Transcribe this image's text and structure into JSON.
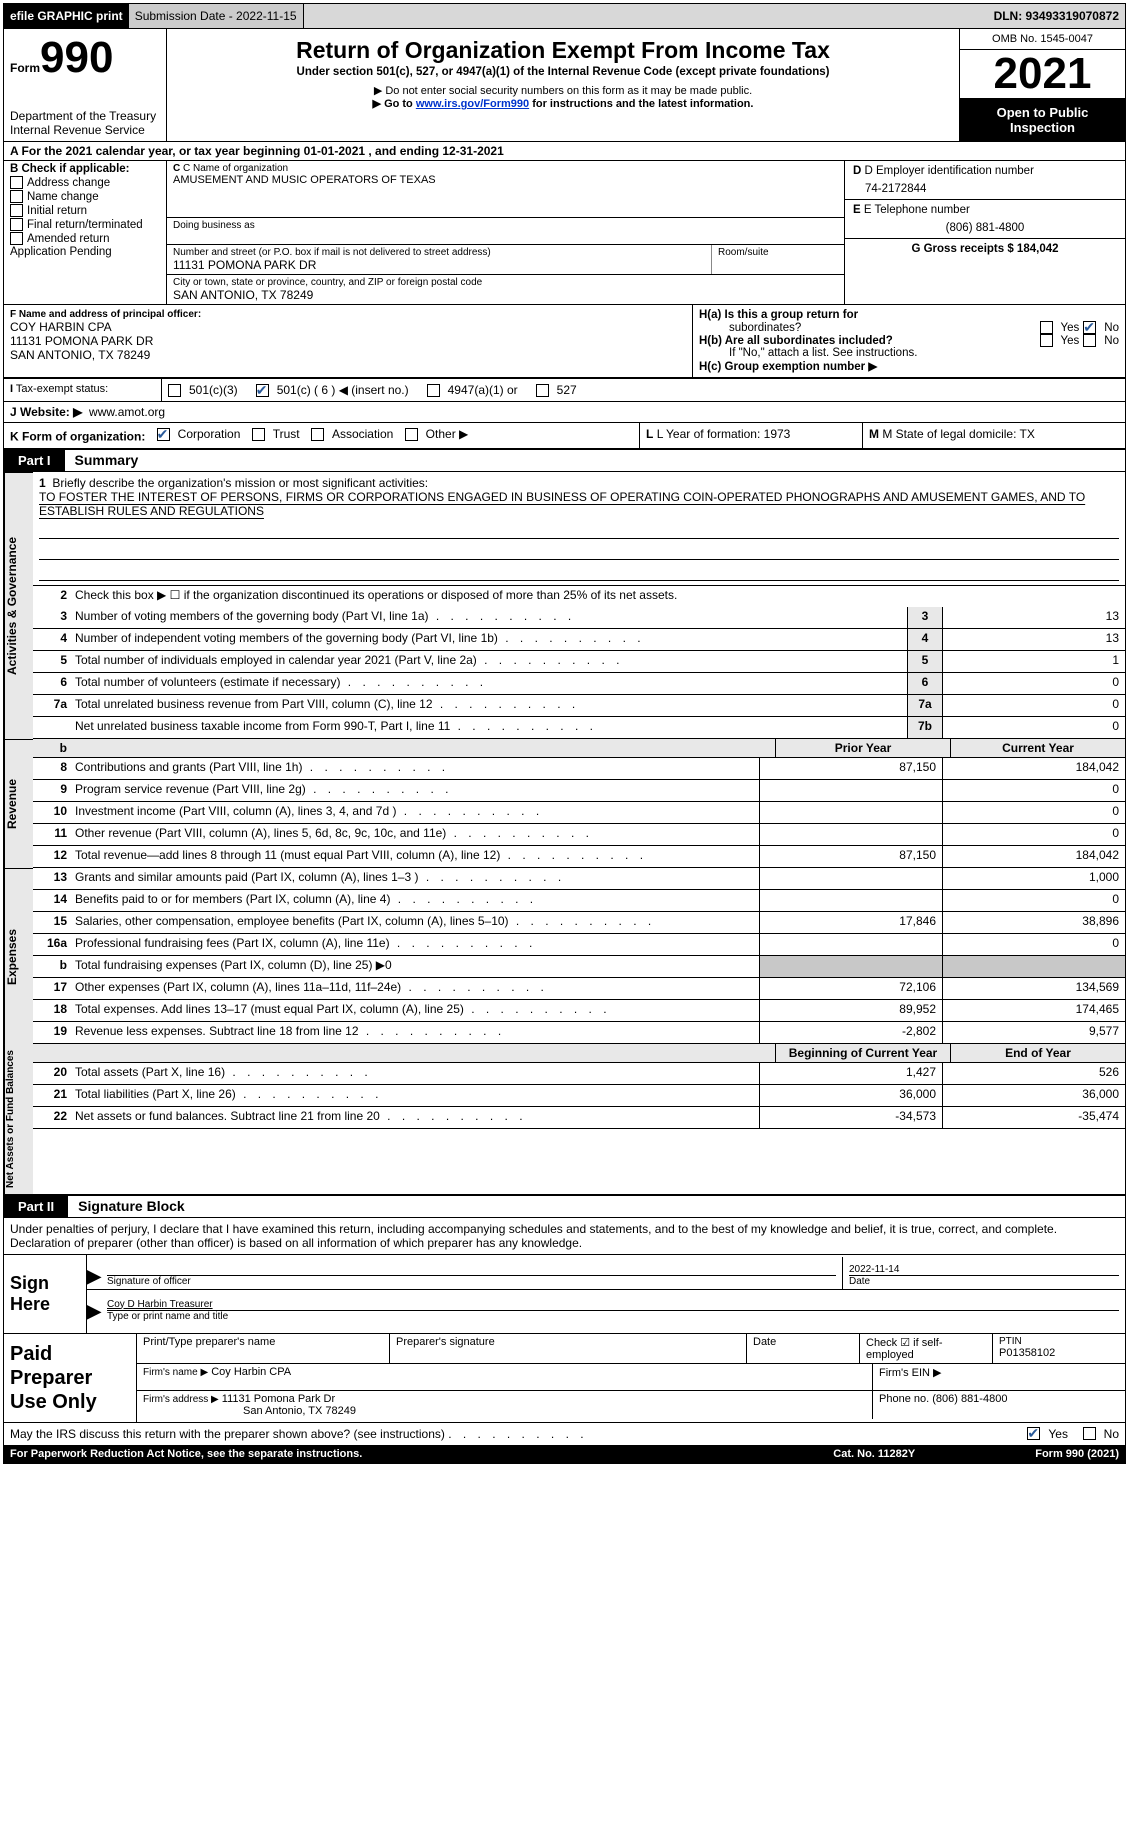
{
  "top_bar": {
    "efile": "efile GRAPHIC print",
    "submission_label": "Submission Date - 2022-11-15",
    "dln_label": "DLN: 93493319070872"
  },
  "header": {
    "form_label": "Form",
    "form_number": "990",
    "dept": "Department of the Treasury",
    "irs": "Internal Revenue Service",
    "title": "Return of Organization Exempt From Income Tax",
    "subtitle": "Under section 501(c), 527, or 4947(a)(1) of the Internal Revenue Code (except private foundations)",
    "note1": "▶ Do not enter social security numbers on this form as it may be made public.",
    "note2_pre": "▶ Go to ",
    "note2_link": "www.irs.gov/Form990",
    "note2_post": " for instructions and the latest information.",
    "omb": "OMB No. 1545-0047",
    "year": "2021",
    "inspect": "Open to Public Inspection"
  },
  "row_a": "A For the 2021 calendar year, or tax year beginning 01-01-2021   , and ending 12-31-2021",
  "section_b": {
    "left_label": "B Check if applicable:",
    "opts": [
      "Address change",
      "Name change",
      "Initial return",
      "Final return/terminated",
      "Amended return",
      "Application Pending"
    ],
    "c_label": "C Name of organization",
    "org_name": "AMUSEMENT AND MUSIC OPERATORS OF TEXAS",
    "dba_label": "Doing business as",
    "addr_label": "Number and street (or P.O. box if mail is not delivered to street address)",
    "suite_label": "Room/suite",
    "addr": "11131 POMONA PARK DR",
    "city_label": "City or town, state or province, country, and ZIP or foreign postal code",
    "city": "SAN ANTONIO, TX  78249",
    "d_label": "D Employer identification number",
    "ein": "74-2172844",
    "e_label": "E Telephone number",
    "phone": "(806) 881-4800",
    "g_label": "G Gross receipts $ 184,042"
  },
  "officer": {
    "f_label": "F  Name and address of principal officer:",
    "name": "COY HARBIN CPA",
    "addr1": "11131 POMONA PARK DR",
    "addr2": "SAN ANTONIO, TX  78249",
    "ha_label": "H(a)  Is this a group return for",
    "ha_sub": "subordinates?",
    "hb_label": "H(b)  Are all subordinates included?",
    "hb_note": "If \"No,\" attach a list. See instructions.",
    "hc_label": "H(c)  Group exemption number ▶",
    "yes": "Yes",
    "no": "No"
  },
  "status": {
    "i_label": "I  Tax-exempt status:",
    "opt1": "501(c)(3)",
    "opt2": "501(c) ( 6 ) ◀ (insert no.)",
    "opt3": "4947(a)(1) or",
    "opt4": "527"
  },
  "website": {
    "j_label": "J  Website: ▶",
    "url": "www.amot.org"
  },
  "k_row": {
    "k_label": "K Form of organization:",
    "corp": "Corporation",
    "trust": "Trust",
    "assoc": "Association",
    "other": "Other ▶",
    "l_label": "L Year of formation: 1973",
    "m_label": "M State of legal domicile: TX"
  },
  "part1": {
    "label": "Part I",
    "title": "Summary",
    "line1_label": "Briefly describe the organization's mission or most significant activities:",
    "mission": "TO FOSTER THE INTEREST OF PERSONS, FIRMS OR CORPORATIONS ENGAGED IN BUSINESS OF OPERATING COIN-OPERATED PHONOGRAPHS AND AMUSEMENT GAMES, AND TO ESTABLISH RULES AND REGULATIONS",
    "line2": "Check this box ▶ ☐ if the organization discontinued its operations or disposed of more than 25% of its net assets.",
    "tabs": {
      "activities": "Activities & Governance",
      "revenue": "Revenue",
      "expenses": "Expenses",
      "netassets": "Net Assets or Fund Balances"
    },
    "rows": [
      {
        "n": "3",
        "d": "Number of voting members of the governing body (Part VI, line 1a)",
        "b": "3",
        "v": "13"
      },
      {
        "n": "4",
        "d": "Number of independent voting members of the governing body (Part VI, line 1b)",
        "b": "4",
        "v": "13"
      },
      {
        "n": "5",
        "d": "Total number of individuals employed in calendar year 2021 (Part V, line 2a)",
        "b": "5",
        "v": "1"
      },
      {
        "n": "6",
        "d": "Total number of volunteers (estimate if necessary)",
        "b": "6",
        "v": "0"
      },
      {
        "n": "7a",
        "d": "Total unrelated business revenue from Part VIII, column (C), line 12",
        "b": "7a",
        "v": "0"
      },
      {
        "n": "",
        "d": "Net unrelated business taxable income from Form 990-T, Part I, line 11",
        "b": "7b",
        "v": "0"
      }
    ],
    "prior_year": "Prior Year",
    "current_year": "Current Year",
    "rev_rows": [
      {
        "n": "8",
        "d": "Contributions and grants (Part VIII, line 1h)",
        "py": "87,150",
        "cy": "184,042"
      },
      {
        "n": "9",
        "d": "Program service revenue (Part VIII, line 2g)",
        "py": "",
        "cy": "0"
      },
      {
        "n": "10",
        "d": "Investment income (Part VIII, column (A), lines 3, 4, and 7d )",
        "py": "",
        "cy": "0"
      },
      {
        "n": "11",
        "d": "Other revenue (Part VIII, column (A), lines 5, 6d, 8c, 9c, 10c, and 11e)",
        "py": "",
        "cy": "0"
      },
      {
        "n": "12",
        "d": "Total revenue—add lines 8 through 11 (must equal Part VIII, column (A), line 12)",
        "py": "87,150",
        "cy": "184,042"
      }
    ],
    "exp_rows": [
      {
        "n": "13",
        "d": "Grants and similar amounts paid (Part IX, column (A), lines 1–3 )",
        "py": "",
        "cy": "1,000"
      },
      {
        "n": "14",
        "d": "Benefits paid to or for members (Part IX, column (A), line 4)",
        "py": "",
        "cy": "0"
      },
      {
        "n": "15",
        "d": "Salaries, other compensation, employee benefits (Part IX, column (A), lines 5–10)",
        "py": "17,846",
        "cy": "38,896"
      },
      {
        "n": "16a",
        "d": "Professional fundraising fees (Part IX, column (A), line 11e)",
        "py": "",
        "cy": "0"
      }
    ],
    "line_b": "Total fundraising expenses (Part IX, column (D), line 25) ▶0",
    "exp_rows2": [
      {
        "n": "17",
        "d": "Other expenses (Part IX, column (A), lines 11a–11d, 11f–24e)",
        "py": "72,106",
        "cy": "134,569"
      },
      {
        "n": "18",
        "d": "Total expenses. Add lines 13–17 (must equal Part IX, column (A), line 25)",
        "py": "89,952",
        "cy": "174,465"
      },
      {
        "n": "19",
        "d": "Revenue less expenses. Subtract line 18 from line 12",
        "py": "-2,802",
        "cy": "9,577"
      }
    ],
    "bcy": "Beginning of Current Year",
    "eoy": "End of Year",
    "na_rows": [
      {
        "n": "20",
        "d": "Total assets (Part X, line 16)",
        "py": "1,427",
        "cy": "526"
      },
      {
        "n": "21",
        "d": "Total liabilities (Part X, line 26)",
        "py": "36,000",
        "cy": "36,000"
      },
      {
        "n": "22",
        "d": "Net assets or fund balances. Subtract line 21 from line 20",
        "py": "-34,573",
        "cy": "-35,474"
      }
    ]
  },
  "part2": {
    "label": "Part II",
    "title": "Signature Block",
    "penalties": "Under penalties of perjury, I declare that I have examined this return, including accompanying schedules and statements, and to the best of my knowledge and belief, it is true, correct, and complete. Declaration of preparer (other than officer) is based on all information of which preparer has any knowledge.",
    "sign_here": "Sign Here",
    "sig_officer": "Signature of officer",
    "sig_date": "Date",
    "sig_date_val": "2022-11-14",
    "sig_name": "Coy D Harbin  Treasurer",
    "sig_name_lbl": "Type or print name and title",
    "paid": "Paid Preparer Use Only",
    "prep_name_lbl": "Print/Type preparer's name",
    "prep_sig_lbl": "Preparer's signature",
    "prep_date_lbl": "Date",
    "prep_check": "Check ☑ if self-employed",
    "ptin_lbl": "PTIN",
    "ptin": "P01358102",
    "firm_name_lbl": "Firm's name   ▶",
    "firm_name": "Coy Harbin CPA",
    "firm_ein_lbl": "Firm's EIN ▶",
    "firm_addr_lbl": "Firm's address ▶",
    "firm_addr": "11131 Pomona Park Dr",
    "firm_city": "San Antonio, TX  78249",
    "firm_phone_lbl": "Phone no. (806) 881-4800"
  },
  "footer": {
    "discuss": "May the IRS discuss this return with the preparer shown above? (see instructions)",
    "yes": "Yes",
    "no": "No",
    "pra": "For Paperwork Reduction Act Notice, see the separate instructions.",
    "cat": "Cat. No. 11282Y",
    "form": "Form 990 (2021)"
  }
}
